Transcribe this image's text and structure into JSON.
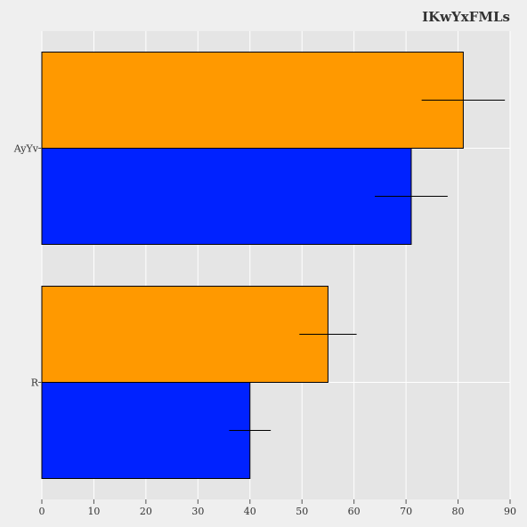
{
  "chart_data": {
    "type": "bar",
    "orientation": "horizontal",
    "title": "IKwYxFMLs",
    "xlabel": "",
    "ylabel": "",
    "xlim": [
      0,
      90
    ],
    "x_ticks": [
      0,
      10,
      20,
      30,
      40,
      50,
      60,
      70,
      80,
      90
    ],
    "grid": true,
    "categories": [
      "AyYv",
      "R"
    ],
    "series": [
      {
        "color": "#ff9900",
        "values": [
          81,
          55
        ],
        "error": [
          8,
          5.5
        ]
      },
      {
        "color": "#0022ff",
        "values": [
          71,
          40
        ],
        "error": [
          7,
          4
        ]
      }
    ]
  }
}
